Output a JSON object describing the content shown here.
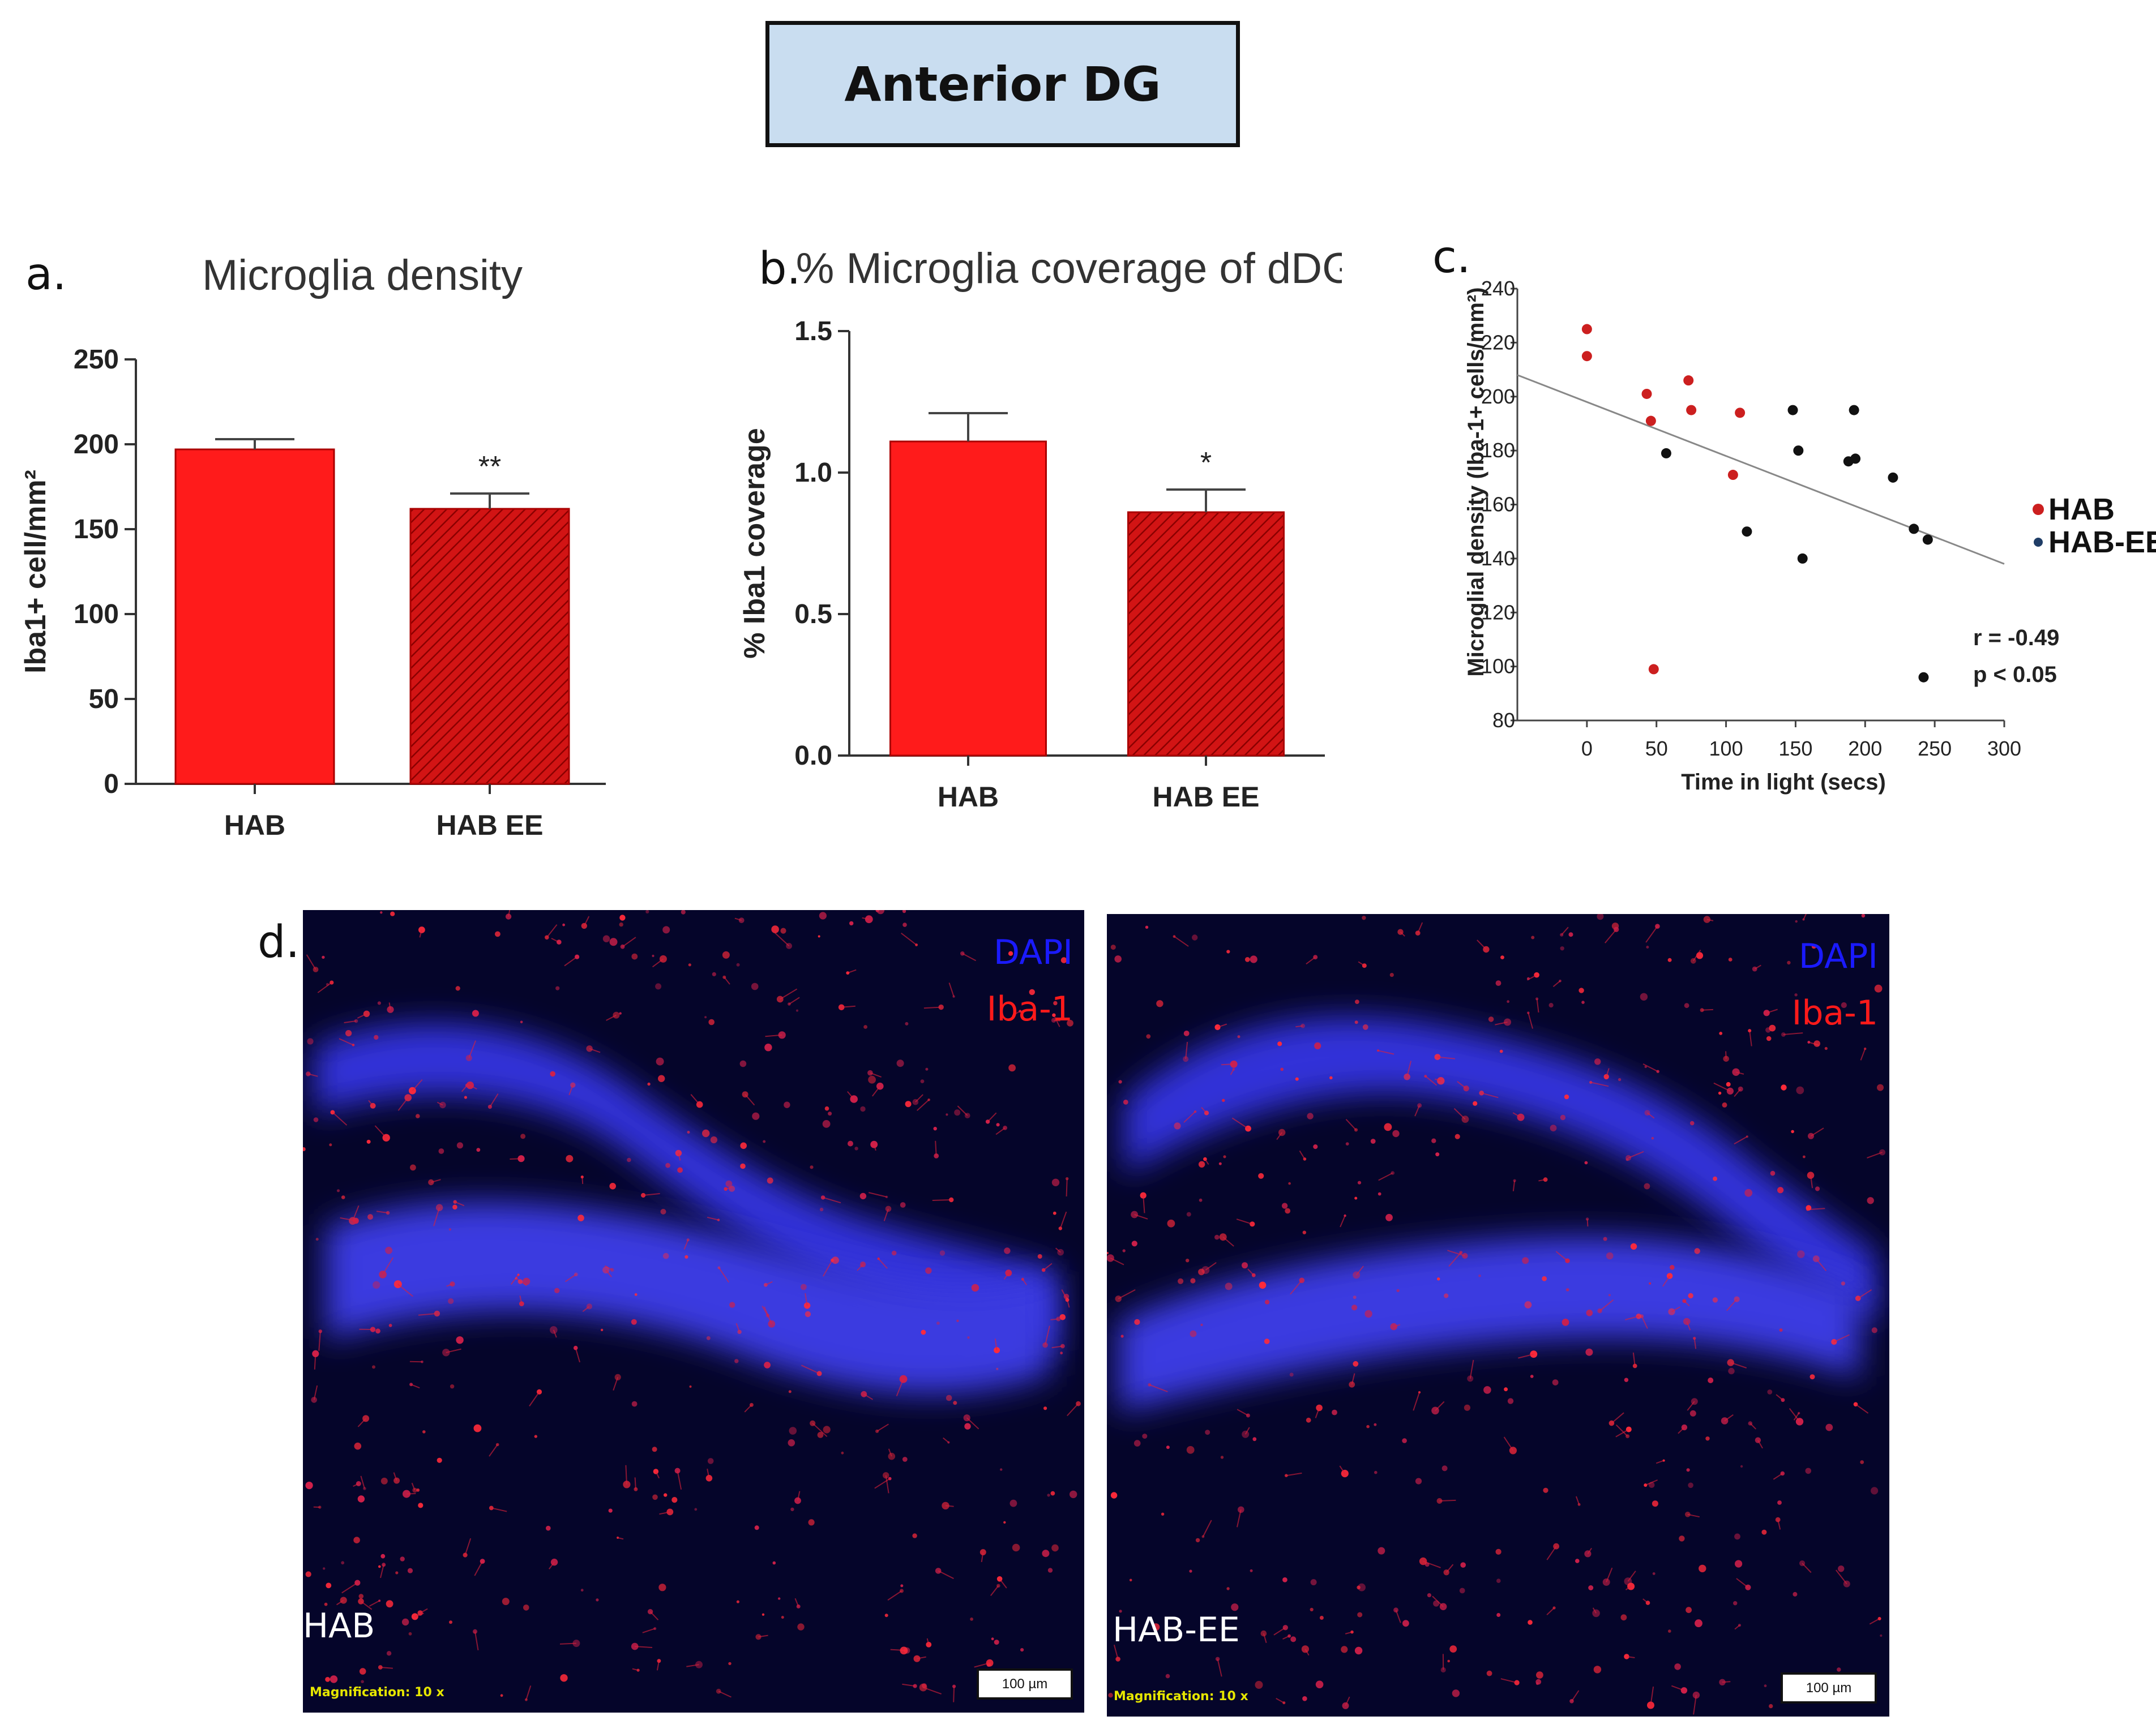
{
  "header": {
    "title": "Anterior DG"
  },
  "panels": {
    "a": "a.",
    "b": "b.",
    "c": "c.",
    "d": "d."
  },
  "colors": {
    "bar_hab": "#ff1b1b",
    "bar_hab_ee": "#d21414",
    "hatch": "#8a0000",
    "scatter_hab": "#cc1f1f",
    "scatter_hab_ee": "#111111",
    "legend_hab_ee_marker": "#1f3d66",
    "dapi": "#1a1aff",
    "iba1": "#ff1a1a",
    "magnification": "#e6e600"
  },
  "chart_data": [
    {
      "type": "bar",
      "panel": "a",
      "title": "Microglia density",
      "ylabel": "Iba1+ cell/mm²",
      "categories": [
        "HAB",
        "HAB EE"
      ],
      "values": [
        197,
        162
      ],
      "errors": [
        6,
        9
      ],
      "significance": [
        "",
        "**"
      ],
      "ylim": [
        0,
        250
      ],
      "yticks": [
        "0",
        "50",
        "100",
        "150",
        "200",
        "250"
      ]
    },
    {
      "type": "bar",
      "panel": "b",
      "title": "% Microglia coverage of dDG",
      "ylabel": "% Iba1 coverage",
      "categories": [
        "HAB",
        "HAB EE"
      ],
      "values": [
        1.11,
        0.86
      ],
      "errors": [
        0.1,
        0.08
      ],
      "significance": [
        "",
        "*"
      ],
      "ylim": [
        0,
        1.5
      ],
      "yticks": [
        "0.0",
        "0.5",
        "1.0",
        "1.5"
      ]
    },
    {
      "type": "scatter",
      "panel": "c",
      "xlabel": "Time in light (secs)",
      "ylabel": "Microglial density (Iba-1+ cells/mm²)",
      "xlim": [
        -50,
        300
      ],
      "ylim": [
        80,
        240
      ],
      "xticks": [
        "0",
        "50",
        "100",
        "150",
        "200",
        "250",
        "300"
      ],
      "yticks": [
        "80",
        "100",
        "120",
        "140",
        "160",
        "180",
        "200",
        "220",
        "240"
      ],
      "series": [
        {
          "name": "HAB",
          "points": [
            [
              0,
              225
            ],
            [
              0,
              215
            ],
            [
              43,
              201
            ],
            [
              46,
              191
            ],
            [
              73,
              206
            ],
            [
              75,
              195
            ],
            [
              105,
              171
            ],
            [
              110,
              194
            ],
            [
              48,
              99
            ]
          ]
        },
        {
          "name": "HAB-EE",
          "points": [
            [
              57,
              179
            ],
            [
              115,
              150
            ],
            [
              148,
              195
            ],
            [
              152,
              180
            ],
            [
              155,
              140
            ],
            [
              188,
              176
            ],
            [
              192,
              195
            ],
            [
              193,
              177
            ],
            [
              220,
              170
            ],
            [
              235,
              151
            ],
            [
              245,
              147
            ],
            [
              242,
              96
            ]
          ]
        }
      ],
      "fit_line": {
        "x": [
          -50,
          300
        ],
        "y": [
          208,
          138
        ]
      },
      "annotations": [
        "r = -0.49",
        "p < 0.05"
      ],
      "legend": "right"
    }
  ],
  "micrographs": [
    {
      "label": "HAB",
      "channels": [
        "DAPI",
        "Iba-1"
      ],
      "magnification": "Magnification:  10 x",
      "scalebar": "100 µm"
    },
    {
      "label": "HAB-EE",
      "channels": [
        "DAPI",
        "Iba-1"
      ],
      "magnification": "Magnification:  10 x",
      "scalebar": "100 µm"
    }
  ]
}
